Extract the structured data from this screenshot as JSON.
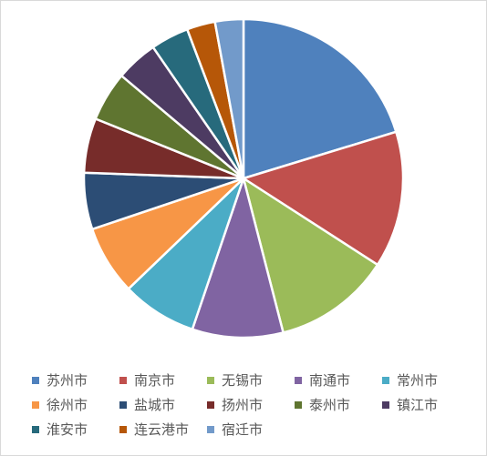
{
  "chart_data": {
    "type": "pie",
    "title": "",
    "legend_position": "bottom",
    "slices": [
      {
        "label": "苏州市",
        "value": 20.5,
        "color": "#4F81BD"
      },
      {
        "label": "南京市",
        "value": 14.0,
        "color": "#C0504D"
      },
      {
        "label": "无锡市",
        "value": 12.0,
        "color": "#9BBB59"
      },
      {
        "label": "南通市",
        "value": 9.3,
        "color": "#8064A2"
      },
      {
        "label": "常州市",
        "value": 7.7,
        "color": "#4BACC6"
      },
      {
        "label": "徐州市",
        "value": 7.1,
        "color": "#F79646"
      },
      {
        "label": "盐城市",
        "value": 5.8,
        "color": "#2C4D75"
      },
      {
        "label": "扬州市",
        "value": 5.6,
        "color": "#772C2A"
      },
      {
        "label": "泰州市",
        "value": 5.1,
        "color": "#5F7530"
      },
      {
        "label": "镇江市",
        "value": 4.3,
        "color": "#4D3B62"
      },
      {
        "label": "淮安市",
        "value": 3.9,
        "color": "#276A7C"
      },
      {
        "label": "连云港市",
        "value": 2.9,
        "color": "#B65708"
      },
      {
        "label": "宿迁市",
        "value": 2.9,
        "color": "#729ACA"
      }
    ]
  }
}
